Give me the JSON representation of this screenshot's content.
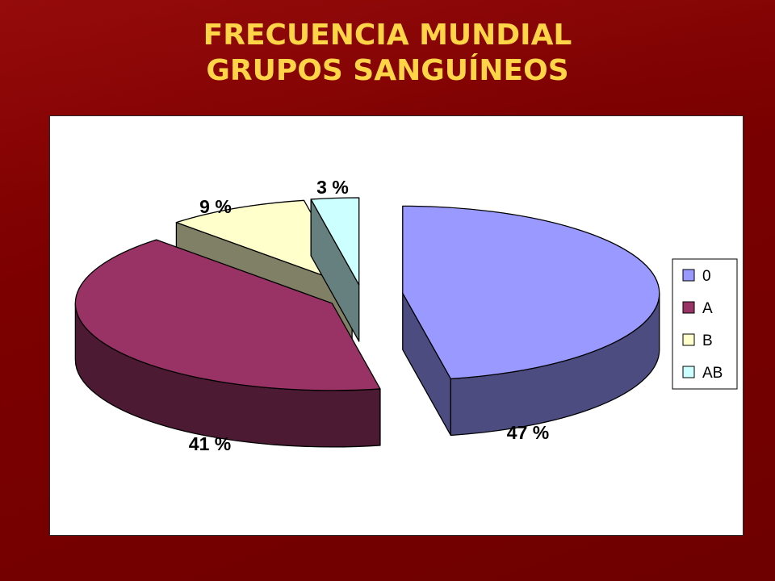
{
  "slide": {
    "title_line1": "FRECUENCIA MUNDIAL",
    "title_line2": "GRUPOS SANGUÍNEOS"
  },
  "chart_data": {
    "type": "pie",
    "style": "3d-exploded",
    "categories": [
      "0",
      "A",
      "B",
      "AB"
    ],
    "values": [
      47,
      41,
      9,
      3
    ],
    "data_labels": [
      "47 %",
      "41 %",
      "9 %",
      "3 %"
    ],
    "colors": {
      "top": [
        "#9999ff",
        "#993366",
        "#ffffcc",
        "#ccffff"
      ],
      "side": [
        "#4c4c80",
        "#4d1a33",
        "#808066",
        "#668080"
      ]
    },
    "legend": {
      "position": "right",
      "entries": [
        "0",
        "A",
        "B",
        "AB"
      ]
    }
  }
}
